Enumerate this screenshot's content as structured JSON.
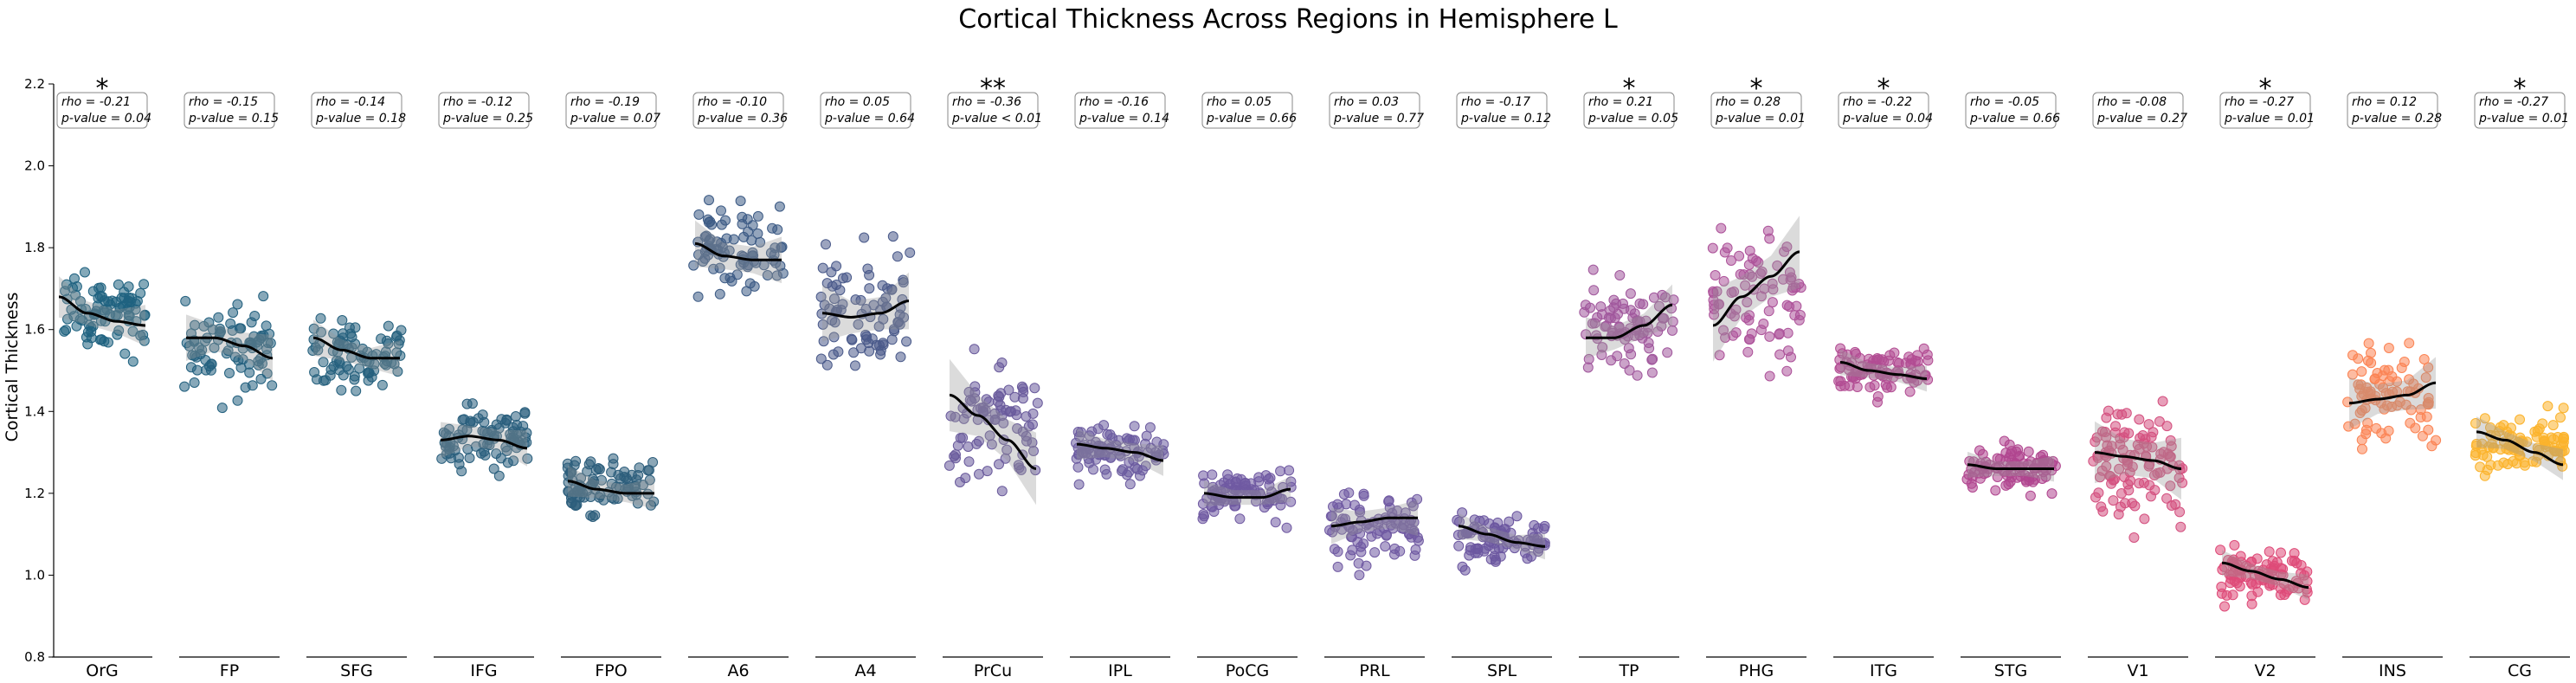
{
  "chart_data": {
    "type": "scatter",
    "title": "Cortical Thickness Across Regions in Hemisphere L",
    "ylabel": "Cortical Thickness",
    "xlabel": "",
    "ylim": [
      0.8,
      2.2
    ],
    "yticks": [
      "0.8",
      "1.0",
      "1.2",
      "1.4",
      "1.6",
      "1.8",
      "2.0",
      "2.2"
    ],
    "grid": false,
    "categories": [
      "OrG",
      "FP",
      "SFG",
      "IFG",
      "FPO",
      "A6",
      "A4",
      "PrCu",
      "IPL",
      "PoCG",
      "PRL",
      "SPL",
      "TP",
      "PHG",
      "ITG",
      "STG",
      "V1",
      "V2",
      "INS",
      "CG"
    ],
    "colors": [
      "#1f6280",
      "#24617f",
      "#26617e",
      "#2a5f7d",
      "#2d5e7c",
      "#3d5b85",
      "#4a5a8a",
      "#6a5b9c",
      "#6c5ca0",
      "#705aa2",
      "#705aa2",
      "#6c57a0",
      "#a0579c",
      "#ad539a",
      "#b24d93",
      "#b0468f",
      "#d4507f",
      "#de4a78",
      "#fb8454",
      "#fbb32c"
    ],
    "series": [
      {
        "region": "OrG",
        "rho": "rho = -0.21",
        "p": "p-value = 0.04",
        "sig": "*",
        "mean": 1.64,
        "sd": 0.08,
        "n": 90,
        "trend": [
          1.68,
          1.64,
          1.62,
          1.61
        ]
      },
      {
        "region": "FP",
        "rho": "rho = -0.15",
        "p": "p-value = 0.15",
        "sig": "",
        "mean": 1.56,
        "sd": 0.09,
        "n": 85,
        "trend": [
          1.58,
          1.58,
          1.56,
          1.53
        ]
      },
      {
        "region": "SFG",
        "rho": "rho = -0.14",
        "p": "p-value = 0.18",
        "sig": "",
        "mean": 1.54,
        "sd": 0.07,
        "n": 85,
        "trend": [
          1.58,
          1.55,
          1.53,
          1.53
        ]
      },
      {
        "region": "IFG",
        "rho": "rho = -0.12",
        "p": "p-value = 0.25",
        "sig": "",
        "mean": 1.33,
        "sd": 0.07,
        "n": 90,
        "trend": [
          1.33,
          1.34,
          1.33,
          1.31
        ]
      },
      {
        "region": "FPO",
        "rho": "rho = -0.19",
        "p": "p-value = 0.07",
        "sig": "",
        "mean": 1.21,
        "sd": 0.06,
        "n": 90,
        "trend": [
          1.23,
          1.21,
          1.2,
          1.2
        ]
      },
      {
        "region": "A6",
        "rho": "rho = -0.10",
        "p": "p-value = 0.36",
        "sig": "",
        "mean": 1.79,
        "sd": 0.09,
        "n": 85,
        "trend": [
          1.81,
          1.78,
          1.77,
          1.77
        ]
      },
      {
        "region": "A4",
        "rho": "rho = 0.05",
        "p": "p-value = 0.64",
        "sig": "",
        "mean": 1.65,
        "sd": 0.11,
        "n": 85,
        "trend": [
          1.64,
          1.63,
          1.64,
          1.67
        ]
      },
      {
        "region": "PrCu",
        "rho": "rho = -0.36",
        "p": "p-value < 0.01",
        "sig": "**",
        "mean": 1.38,
        "sd": 0.14,
        "n": 85,
        "trend": [
          1.44,
          1.39,
          1.33,
          1.26
        ]
      },
      {
        "region": "IPL",
        "rho": "rho = -0.16",
        "p": "p-value = 0.14",
        "sig": "",
        "mean": 1.3,
        "sd": 0.06,
        "n": 90,
        "trend": [
          1.32,
          1.31,
          1.3,
          1.28
        ]
      },
      {
        "region": "PoCG",
        "rho": "rho = 0.05",
        "p": "p-value = 0.66",
        "sig": "",
        "mean": 1.2,
        "sd": 0.05,
        "n": 90,
        "trend": [
          1.2,
          1.19,
          1.19,
          1.21
        ]
      },
      {
        "region": "PRL",
        "rho": "rho = 0.03",
        "p": "p-value = 0.77",
        "sig": "",
        "mean": 1.12,
        "sd": 0.07,
        "n": 90,
        "trend": [
          1.12,
          1.13,
          1.14,
          1.14
        ]
      },
      {
        "region": "SPL",
        "rho": "rho = -0.17",
        "p": "p-value = 0.12",
        "sig": "",
        "mean": 1.09,
        "sd": 0.05,
        "n": 90,
        "trend": [
          1.12,
          1.1,
          1.08,
          1.07
        ]
      },
      {
        "region": "TP",
        "rho": "rho = 0.21",
        "p": "p-value = 0.05",
        "sig": "*",
        "mean": 1.6,
        "sd": 0.08,
        "n": 85,
        "trend": [
          1.58,
          1.58,
          1.61,
          1.66
        ]
      },
      {
        "region": "PHG",
        "rho": "rho = 0.28",
        "p": "p-value = 0.01",
        "sig": "*",
        "mean": 1.68,
        "sd": 0.14,
        "n": 85,
        "trend": [
          1.61,
          1.68,
          1.73,
          1.79
        ]
      },
      {
        "region": "ITG",
        "rho": "rho = -0.22",
        "p": "p-value = 0.04",
        "sig": "*",
        "mean": 1.5,
        "sd": 0.05,
        "n": 90,
        "trend": [
          1.52,
          1.5,
          1.49,
          1.48
        ]
      },
      {
        "region": "STG",
        "rho": "rho = -0.05",
        "p": "p-value = 0.66",
        "sig": "",
        "mean": 1.26,
        "sd": 0.05,
        "n": 95,
        "trend": [
          1.27,
          1.26,
          1.26,
          1.26
        ]
      },
      {
        "region": "V1",
        "rho": "rho = -0.08",
        "p": "p-value = 0.27",
        "sig": "",
        "mean": 1.28,
        "sd": 0.12,
        "n": 110,
        "trend": [
          1.3,
          1.29,
          1.28,
          1.26
        ]
      },
      {
        "region": "V2",
        "rho": "rho = -0.27",
        "p": "p-value = 0.01",
        "sig": "*",
        "mean": 1.0,
        "sd": 0.05,
        "n": 95,
        "trend": [
          1.03,
          1.01,
          0.99,
          0.97
        ]
      },
      {
        "region": "INS",
        "rho": "rho = 0.12",
        "p": "p-value = 0.28",
        "sig": "",
        "mean": 1.44,
        "sd": 0.1,
        "n": 85,
        "trend": [
          1.42,
          1.43,
          1.44,
          1.47
        ]
      },
      {
        "region": "CG",
        "rho": "rho = -0.27",
        "p": "p-value = 0.01",
        "sig": "*",
        "mean": 1.32,
        "sd": 0.06,
        "n": 95,
        "trend": [
          1.35,
          1.33,
          1.3,
          1.27
        ]
      }
    ]
  }
}
